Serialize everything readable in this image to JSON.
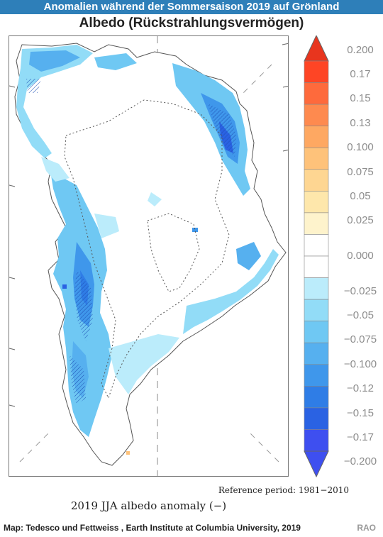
{
  "header": {
    "banner": "Anomalien während der Sommersaison 2019 auf Grönland",
    "subtitle": "Albedo (Rückstrahlungsvermögen)"
  },
  "map": {
    "reference_text": "Reference period: 1981−2010",
    "xlabel": "2019 JJA albedo anomaly (−)"
  },
  "chart_data": {
    "type": "heatmap",
    "title": "Albedo (Rückstrahlungsvermögen)",
    "xlabel": "2019 JJA albedo anomaly (−)",
    "colorbar": {
      "range": [
        -0.2,
        0.2
      ],
      "extend": "both",
      "top_color": "#e8351e",
      "bottom_color": "#3e4ff0",
      "ticks": [
        {
          "label": "0.200",
          "value": 0.2
        },
        {
          "label": "0.17",
          "value": 0.175
        },
        {
          "label": "0.15",
          "value": 0.15
        },
        {
          "label": "0.13",
          "value": 0.125
        },
        {
          "label": "0.100",
          "value": 0.1
        },
        {
          "label": "0.075",
          "value": 0.075
        },
        {
          "label": "0.05",
          "value": 0.05
        },
        {
          "label": "0.025",
          "value": 0.025
        },
        {
          "label": "0.000",
          "value": 0.0
        },
        {
          "label": "−0.025",
          "value": -0.025
        },
        {
          "label": "−0.05",
          "value": -0.05
        },
        {
          "label": "−0.075",
          "value": -0.075
        },
        {
          "label": "−0.100",
          "value": -0.1
        },
        {
          "label": "−0.12",
          "value": -0.125
        },
        {
          "label": "−0.15",
          "value": -0.15
        },
        {
          "label": "−0.17",
          "value": -0.175
        },
        {
          "label": "−0.200",
          "value": -0.2
        }
      ],
      "bins": [
        {
          "color": "#fe4525"
        },
        {
          "color": "#fe6a3c"
        },
        {
          "color": "#fe8a4f"
        },
        {
          "color": "#fea862"
        },
        {
          "color": "#fec27a"
        },
        {
          "color": "#fed692"
        },
        {
          "color": "#fee7ab"
        },
        {
          "color": "#fef3cc"
        },
        {
          "color": "#ffffff"
        },
        {
          "color": "#ffffff"
        },
        {
          "color": "#bbecfb"
        },
        {
          "color": "#92dcf7"
        },
        {
          "color": "#6fc8f3"
        },
        {
          "color": "#56b0ef"
        },
        {
          "color": "#3f97eb"
        },
        {
          "color": "#2f7de6"
        },
        {
          "color": "#2a62e3"
        },
        {
          "color": "#3e4ff0"
        }
      ]
    }
  },
  "footer": {
    "credit": "Map: Tedesco und Fettweiss , Earth Institute at Columbia University, 2019",
    "logo": "RAO"
  }
}
